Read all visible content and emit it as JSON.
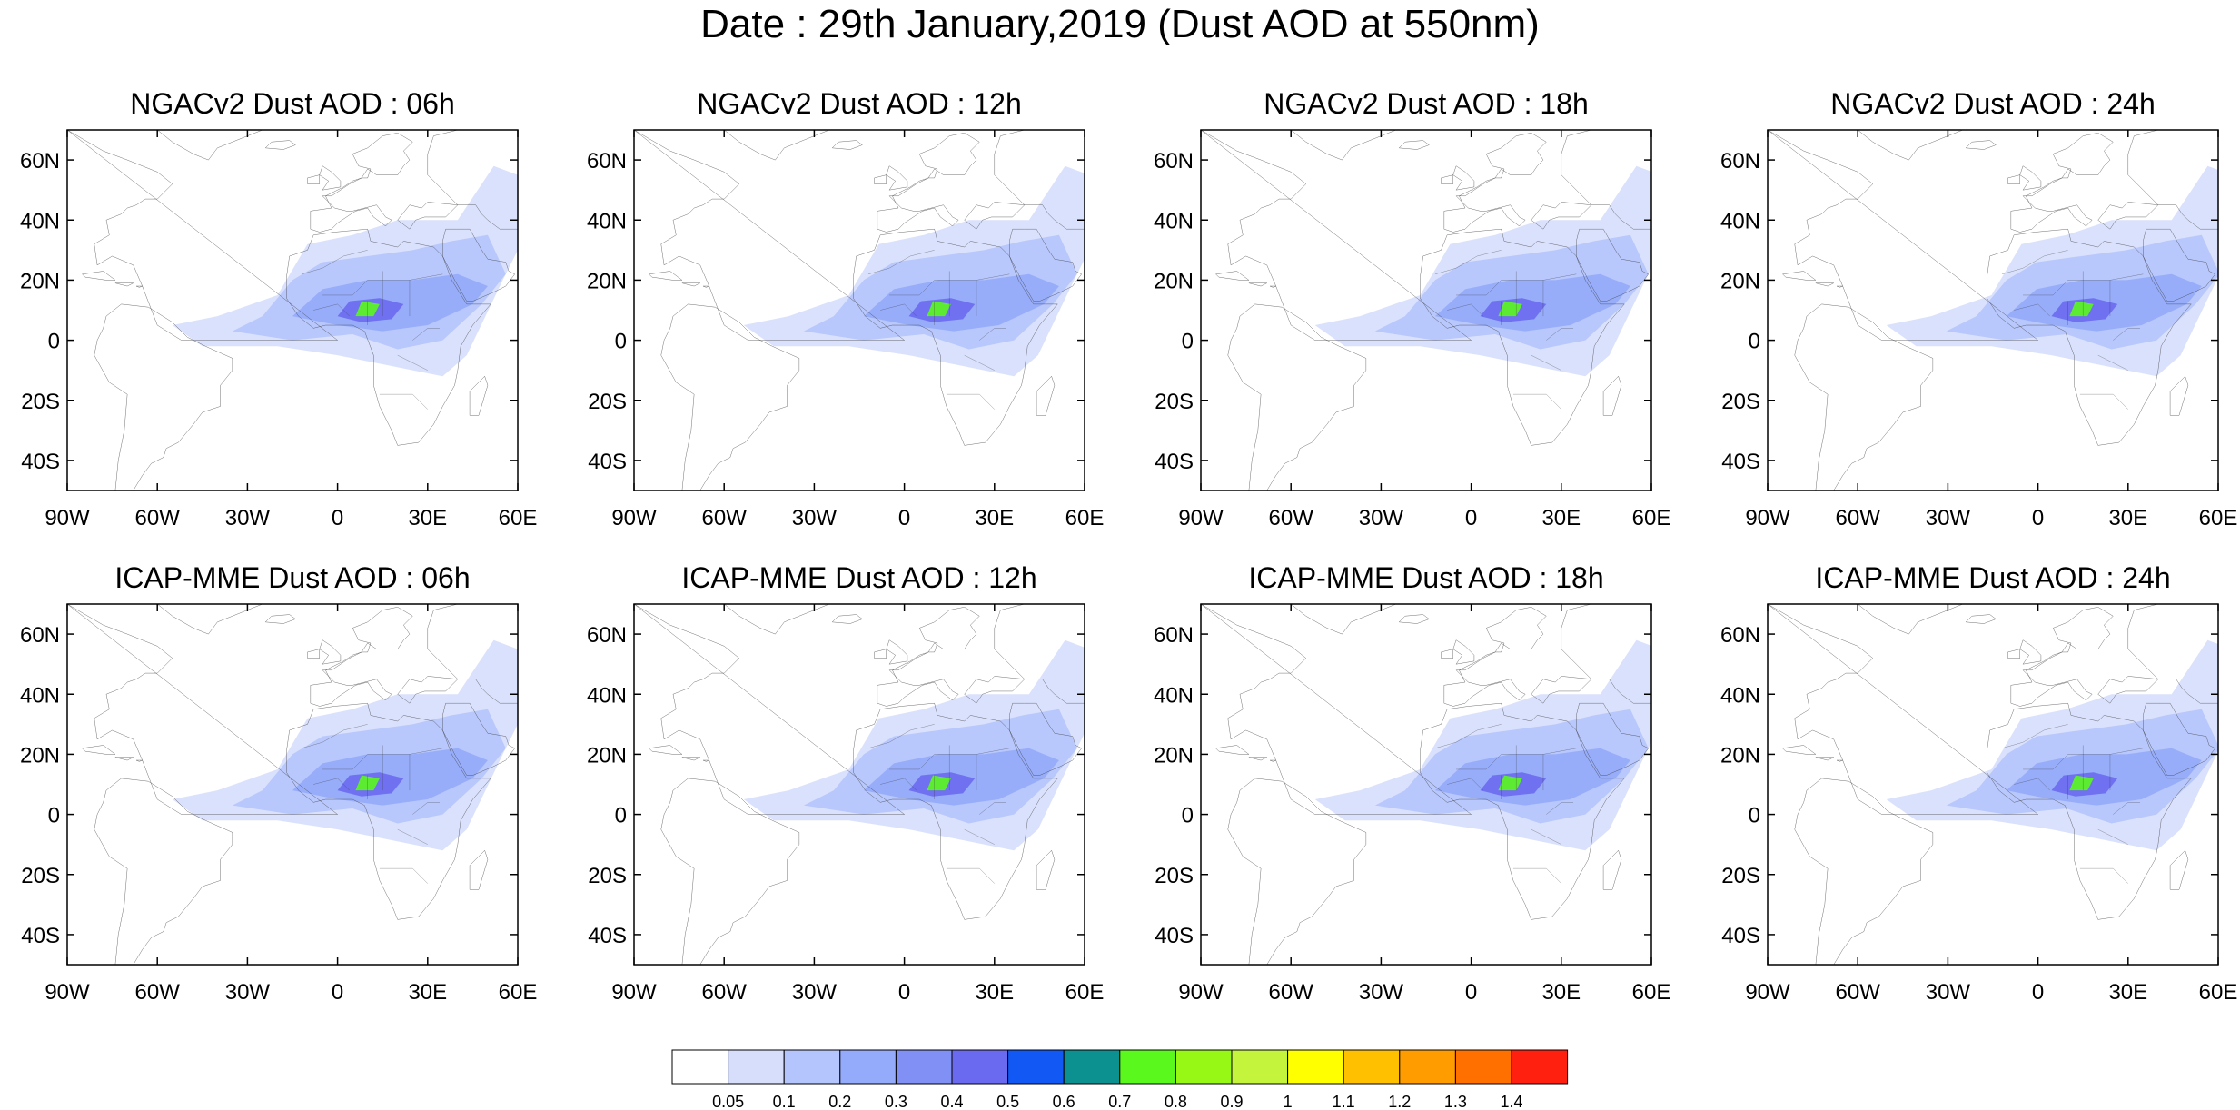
{
  "title": "Date : 29th January,2019 (Dust AOD at 550nm)",
  "panels": [
    {
      "title": "NGACv2 Dust AOD : 06h"
    },
    {
      "title": "NGACv2 Dust AOD : 12h"
    },
    {
      "title": "NGACv2 Dust AOD : 18h"
    },
    {
      "title": "NGACv2 Dust AOD : 24h"
    },
    {
      "title": "ICAP-MME Dust AOD : 06h"
    },
    {
      "title": "ICAP-MME Dust AOD : 12h"
    },
    {
      "title": "ICAP-MME Dust AOD : 18h"
    },
    {
      "title": "ICAP-MME Dust AOD : 24h"
    }
  ],
  "map": {
    "lon_range": [
      -90,
      60
    ],
    "lat_range": [
      -50,
      70
    ],
    "x_ticks": [
      {
        "lon": -90,
        "label": "90W"
      },
      {
        "lon": -60,
        "label": "60W"
      },
      {
        "lon": -30,
        "label": "30W"
      },
      {
        "lon": 0,
        "label": "0"
      },
      {
        "lon": 30,
        "label": "30E"
      },
      {
        "lon": 60,
        "label": "60E"
      }
    ],
    "y_ticks": [
      {
        "lat": 60,
        "label": "60N"
      },
      {
        "lat": 40,
        "label": "40N"
      },
      {
        "lat": 20,
        "label": "20N"
      },
      {
        "lat": 0,
        "label": "0"
      },
      {
        "lat": -20,
        "label": "20S"
      },
      {
        "lat": -40,
        "label": "40S"
      }
    ],
    "variable": "Dust AOD at 550nm"
  },
  "colorbar": {
    "colors": [
      "#ffffff",
      "#d6defc",
      "#b4c4fc",
      "#94aafa",
      "#8090f4",
      "#6a6af0",
      "#1258f4",
      "#0c9090",
      "#5af81c",
      "#96f814",
      "#c4f43c",
      "#ffff00",
      "#ffc000",
      "#ff9c00",
      "#ff7000",
      "#ff2010"
    ],
    "labels": [
      "0.05",
      "0.1",
      "0.2",
      "0.3",
      "0.4",
      "0.5",
      "0.6",
      "0.7",
      "0.8",
      "0.9",
      "1",
      "1.1",
      "1.2",
      "1.3",
      "1.4"
    ]
  }
}
